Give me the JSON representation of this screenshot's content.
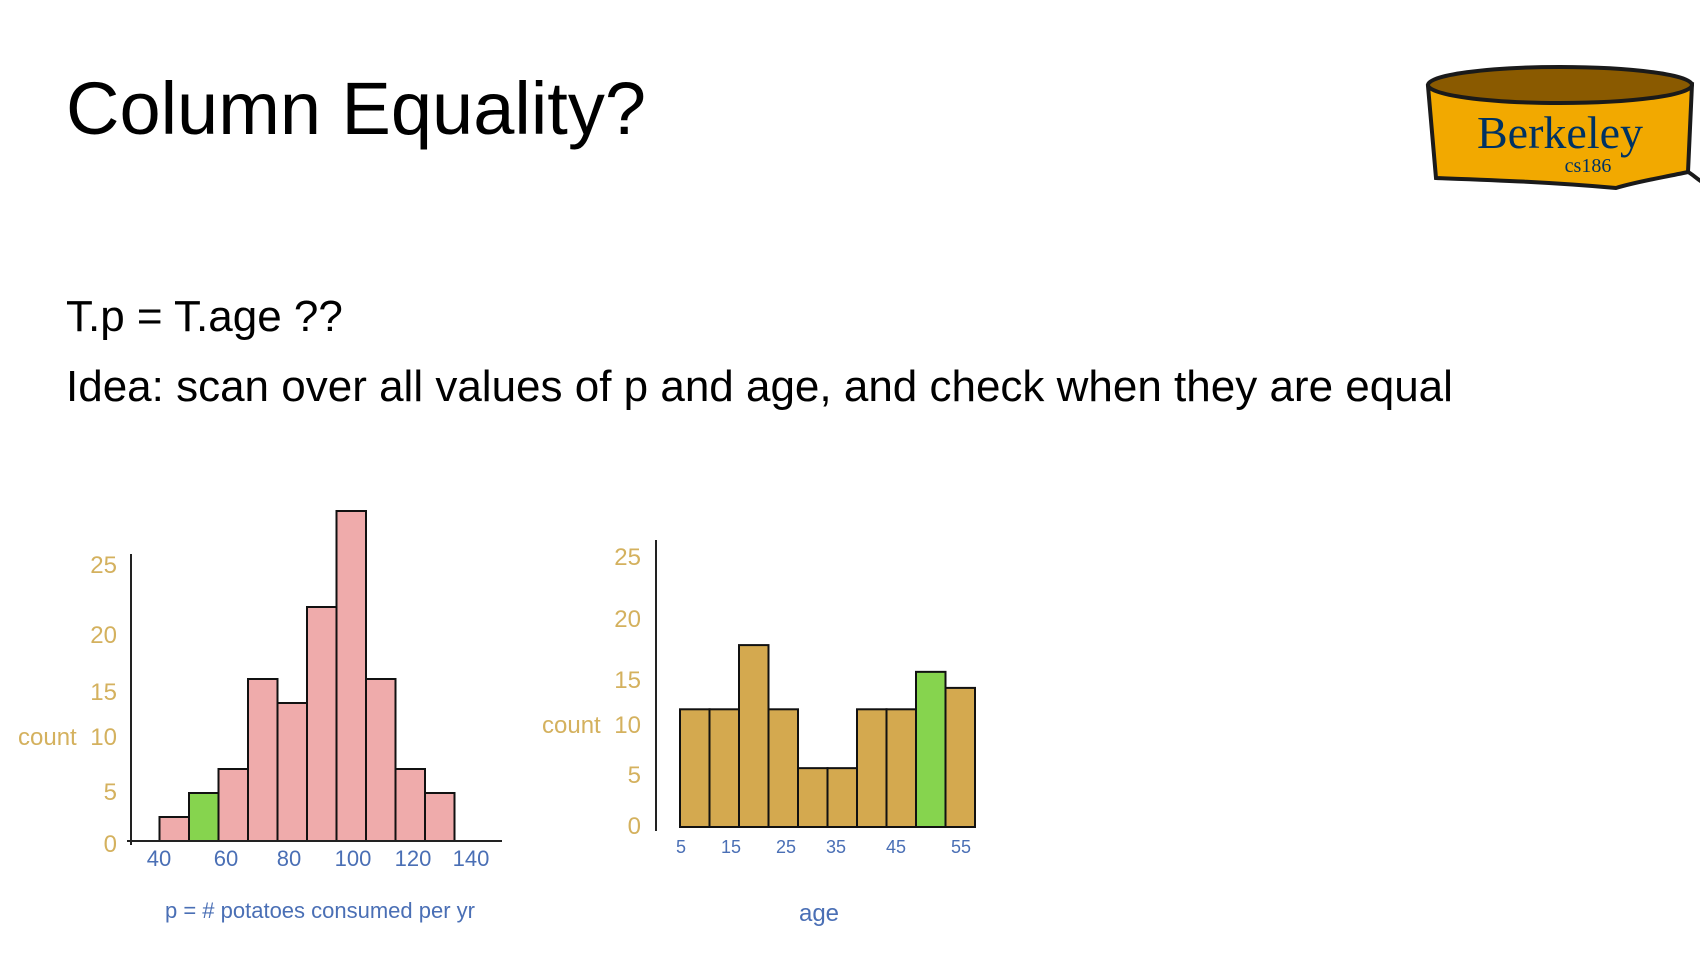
{
  "slide": {
    "title": "Column Equality?",
    "line1": "T.p = T.age ??",
    "line2": "Idea: scan over all values of p and age, and check when they are equal"
  },
  "logo": {
    "text": "Berkeley",
    "subtext": "cs186",
    "colors": {
      "fill": "#f2a900",
      "top": "#8a5a00",
      "outline": "#1a1a1a",
      "text": "#003262"
    }
  },
  "colors": {
    "axis_tick": "#d4b15e",
    "x_tick": "#4a6fb5",
    "pink": "#efabab",
    "gold": "#d4a94f",
    "green": "#86d44e"
  },
  "chart_data": [
    {
      "type": "bar",
      "title": "",
      "xlabel": "p = # potatoes consumed per yr",
      "ylabel": "count",
      "y_ticks": [
        0,
        5,
        10,
        15,
        20,
        25
      ],
      "x_ticks": [
        40,
        60,
        80,
        100,
        120,
        140
      ],
      "xlim": [
        30,
        150
      ],
      "ylim": [
        0,
        25
      ],
      "bins": [
        {
          "x0": 40,
          "x1": 50,
          "value": 2,
          "highlight": false
        },
        {
          "x0": 50,
          "x1": 60,
          "value": 4,
          "highlight": true
        },
        {
          "x0": 60,
          "x1": 70,
          "value": 6,
          "highlight": false
        },
        {
          "x0": 70,
          "x1": 80,
          "value": 13.5,
          "highlight": false
        },
        {
          "x0": 80,
          "x1": 90,
          "value": 11.5,
          "highlight": false
        },
        {
          "x0": 90,
          "x1": 100,
          "value": 19.5,
          "highlight": false
        },
        {
          "x0": 100,
          "x1": 110,
          "value": 27.5,
          "highlight": false
        },
        {
          "x0": 110,
          "x1": 120,
          "value": 13.5,
          "highlight": false
        },
        {
          "x0": 120,
          "x1": 130,
          "value": 6,
          "highlight": false
        },
        {
          "x0": 130,
          "x1": 140,
          "value": 4,
          "highlight": false
        }
      ]
    },
    {
      "type": "bar",
      "title": "",
      "xlabel": "age",
      "ylabel": "count",
      "y_ticks": [
        0,
        5,
        10,
        15,
        20,
        25
      ],
      "x_ticks": [
        5,
        15,
        25,
        35,
        45,
        55
      ],
      "xlim": [
        2,
        58
      ],
      "ylim": [
        0,
        25
      ],
      "bins": [
        {
          "x0": 5,
          "x1": 10,
          "value": 11,
          "highlight": false
        },
        {
          "x0": 10,
          "x1": 15,
          "value": 11,
          "highlight": false
        },
        {
          "x0": 15,
          "x1": 20,
          "value": 17,
          "highlight": false
        },
        {
          "x0": 20,
          "x1": 25,
          "value": 11,
          "highlight": false
        },
        {
          "x0": 25,
          "x1": 30,
          "value": 5.5,
          "highlight": false
        },
        {
          "x0": 30,
          "x1": 35,
          "value": 5.5,
          "highlight": false
        },
        {
          "x0": 35,
          "x1": 40,
          "value": 11,
          "highlight": false
        },
        {
          "x0": 40,
          "x1": 45,
          "value": 11,
          "highlight": false
        },
        {
          "x0": 45,
          "x1": 50,
          "value": 14.5,
          "highlight": true
        },
        {
          "x0": 50,
          "x1": 55,
          "value": 13,
          "highlight": false
        }
      ]
    }
  ]
}
